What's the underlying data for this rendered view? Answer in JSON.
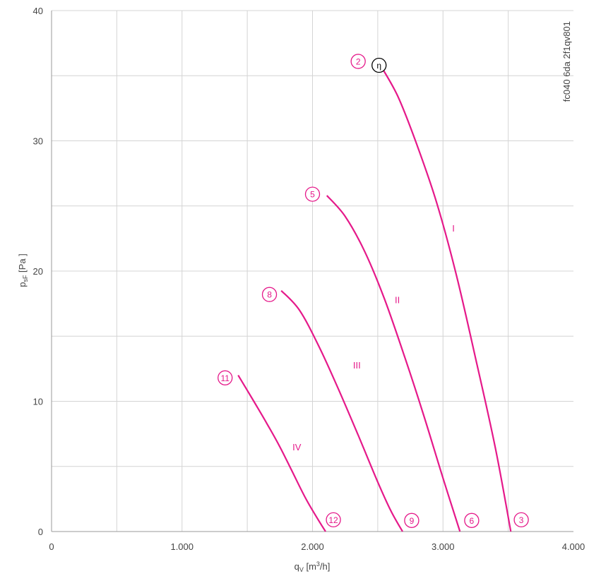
{
  "chart_data": {
    "type": "line",
    "title": "",
    "xlabel": "q",
    "xlabel_sub": "V",
    "xlabel_unit_pre": " [m",
    "xlabel_unit_sup": "3",
    "xlabel_unit_post": "/h]",
    "ylabel": "p",
    "ylabel_sub": "sF",
    "ylabel_unit": " [Pa ]",
    "xlim": [
      0,
      4000
    ],
    "ylim": [
      0,
      40
    ],
    "x_ticks": [
      0,
      1000,
      2000,
      3000,
      4000
    ],
    "x_tick_labels": [
      "0",
      "1.000",
      "2.000",
      "3.000",
      "4.000"
    ],
    "y_ticks": [
      0,
      10,
      20,
      30,
      40
    ],
    "y_tick_labels": [
      "0",
      "10",
      "20",
      "30",
      "40"
    ],
    "grid": true,
    "curve_color": "#e5198a",
    "series": [
      {
        "name": "I",
        "label_at": [
          3080,
          23.3
        ],
        "x": [
          2490,
          2650,
          2800,
          2950,
          3100,
          3250,
          3400,
          3520
        ],
        "y": [
          36.3,
          33.5,
          29.7,
          25.3,
          19.8,
          13.3,
          6.5,
          0
        ]
      },
      {
        "name": "II",
        "label_at": [
          2650,
          17.8
        ],
        "x": [
          2110,
          2250,
          2400,
          2550,
          2700,
          2850,
          3000,
          3130
        ],
        "y": [
          25.8,
          24.2,
          21.5,
          17.9,
          13.6,
          9.0,
          4.1,
          0
        ]
      },
      {
        "name": "III",
        "label_at": [
          2340,
          12.8
        ],
        "x": [
          1760,
          1900,
          2050,
          2200,
          2350,
          2500,
          2600,
          2690
        ],
        "y": [
          18.5,
          17.0,
          14.2,
          10.9,
          7.4,
          3.8,
          1.6,
          0
        ]
      },
      {
        "name": "IV",
        "label_at": [
          1880,
          6.5
        ],
        "x": [
          1430,
          1550,
          1650,
          1750,
          1850,
          1950,
          2050,
          2100
        ],
        "y": [
          12.0,
          10.0,
          8.3,
          6.5,
          4.5,
          2.5,
          0.8,
          0
        ]
      }
    ],
    "markers": [
      {
        "label": "2",
        "x": 2350,
        "y": 36.1,
        "color": "#e5198a"
      },
      {
        "label": "η",
        "x": 2510,
        "y": 35.8,
        "color": "#000000"
      },
      {
        "label": "5",
        "x": 2000,
        "y": 25.9,
        "color": "#e5198a"
      },
      {
        "label": "8",
        "x": 1670,
        "y": 18.2,
        "color": "#e5198a"
      },
      {
        "label": "11",
        "x": 1330,
        "y": 11.8,
        "color": "#e5198a"
      },
      {
        "label": "12",
        "x": 2160,
        "y": 0.9,
        "color": "#e5198a"
      },
      {
        "label": "9",
        "x": 2760,
        "y": 0.85,
        "color": "#e5198a"
      },
      {
        "label": "6",
        "x": 3220,
        "y": 0.85,
        "color": "#e5198a"
      },
      {
        "label": "3",
        "x": 3600,
        "y": 0.9,
        "color": "#e5198a"
      }
    ],
    "doc_id": "fc040 6da 2f1qv801"
  }
}
